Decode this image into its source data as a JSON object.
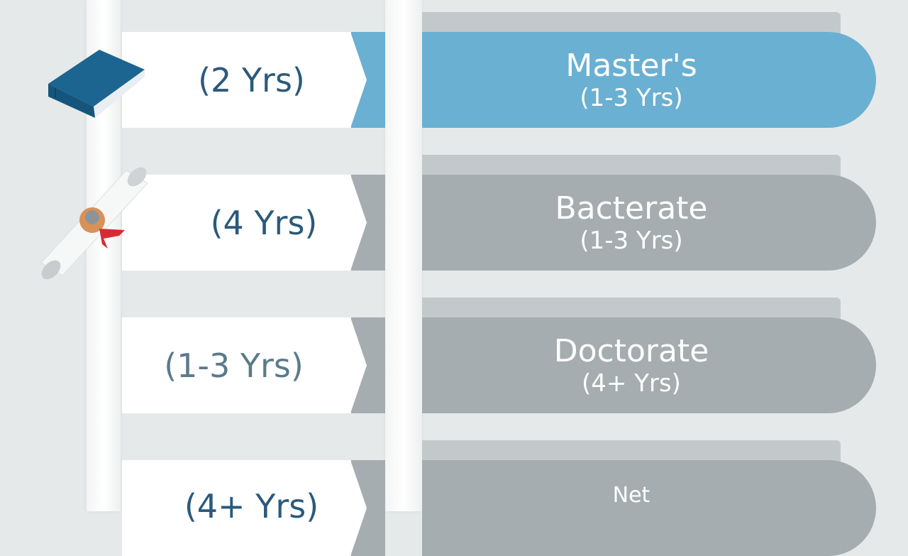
{
  "colors": {
    "accent_blue": "#6ab0d2",
    "gray": "#a5adb0",
    "tab_blue": "#bfc7c9",
    "tab_gray": "#c3c9cb",
    "text_dark": "#2a5a7c"
  },
  "rows": [
    {
      "duration": "(2 Yrs)",
      "title": "Master's",
      "subtitle": "(1-3 Yrs)",
      "icon": "book-icon"
    },
    {
      "duration": "(4 Yrs)",
      "title": "Bacterate",
      "subtitle": "(1-3 Yrs)",
      "icon": "diploma-scroll-icon"
    },
    {
      "duration": "(1-3 Yrs)",
      "title": "Doctorate",
      "subtitle": "(4+ Yrs)"
    },
    {
      "duration": "(4+ Yrs)",
      "title": "Net",
      "subtitle": ""
    }
  ]
}
